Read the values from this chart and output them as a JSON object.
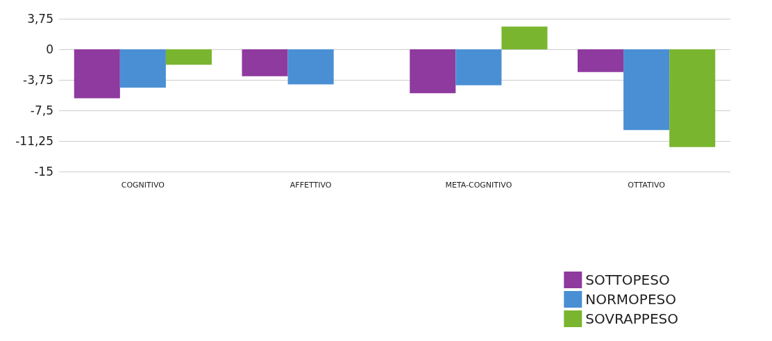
{
  "chart_data": {
    "type": "bar",
    "categories": [
      "COGNITIVO",
      "AFFETTIVO",
      "META-COGNITIVO",
      "OTTATIVO"
    ],
    "series": [
      {
        "name": "SOTTOPESO",
        "color": "#8e3a9e",
        "values": [
          -6.0,
          -3.3,
          -5.4,
          -2.8
        ]
      },
      {
        "name": "NORMOPESO",
        "color": "#4a8fd4",
        "values": [
          -4.7,
          -4.3,
          -4.4,
          -9.9
        ]
      },
      {
        "name": "SOVRAPPESO",
        "color": "#7ab52f",
        "values": [
          -1.9,
          null,
          2.8,
          -12.0
        ]
      }
    ],
    "ylim": [
      -15,
      3.75
    ],
    "yticks": [
      {
        "value": 3.75,
        "label": "3,75"
      },
      0,
      {
        "value": -3.75,
        "label": "-3,75"
      },
      {
        "value": -7.5,
        "label": "-7,5"
      },
      {
        "value": -11.25,
        "label": "-11,25"
      },
      -15
    ],
    "grid": "y",
    "legend": "bottom right"
  }
}
